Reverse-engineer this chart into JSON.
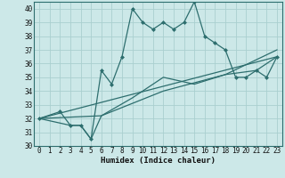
{
  "xlabel": "Humidex (Indice chaleur)",
  "bg_color": "#cce8e8",
  "grid_color": "#aacfcf",
  "line_color": "#2d6e6e",
  "xlim": [
    -0.5,
    23.5
  ],
  "ylim": [
    30,
    40.5
  ],
  "xticks": [
    0,
    1,
    2,
    3,
    4,
    5,
    6,
    7,
    8,
    9,
    10,
    11,
    12,
    13,
    14,
    15,
    16,
    17,
    18,
    19,
    20,
    21,
    22,
    23
  ],
  "yticks": [
    30,
    31,
    32,
    33,
    34,
    35,
    36,
    37,
    38,
    39,
    40
  ],
  "series": [
    {
      "x": [
        0,
        2,
        3,
        4,
        5,
        6,
        7,
        8,
        9,
        10,
        11,
        12,
        13,
        14,
        15,
        16,
        17,
        18,
        19,
        20,
        21,
        22,
        23
      ],
      "y": [
        32,
        32.5,
        31.5,
        31.5,
        30.5,
        35.5,
        34.5,
        36.5,
        40,
        39,
        38.5,
        39,
        38.5,
        39.0,
        40.5,
        38,
        37.5,
        37,
        35,
        35,
        35.5,
        35,
        36.5
      ],
      "marker": "D",
      "lw": 0.9,
      "ms": 2.0
    },
    {
      "x": [
        0,
        3,
        4,
        5,
        6,
        9,
        12,
        15,
        18,
        21,
        23
      ],
      "y": [
        32,
        31.5,
        31.5,
        30.5,
        32.2,
        33.5,
        35.0,
        34.5,
        35.2,
        35.5,
        36.5
      ],
      "marker": null,
      "lw": 0.9,
      "ms": 0
    },
    {
      "x": [
        0,
        6,
        12,
        18,
        23
      ],
      "y": [
        32,
        32.2,
        34.0,
        35.2,
        37.0
      ],
      "marker": null,
      "lw": 0.9,
      "ms": 0
    },
    {
      "x": [
        0,
        23
      ],
      "y": [
        32,
        36.5
      ],
      "marker": null,
      "lw": 0.9,
      "ms": 0
    }
  ]
}
